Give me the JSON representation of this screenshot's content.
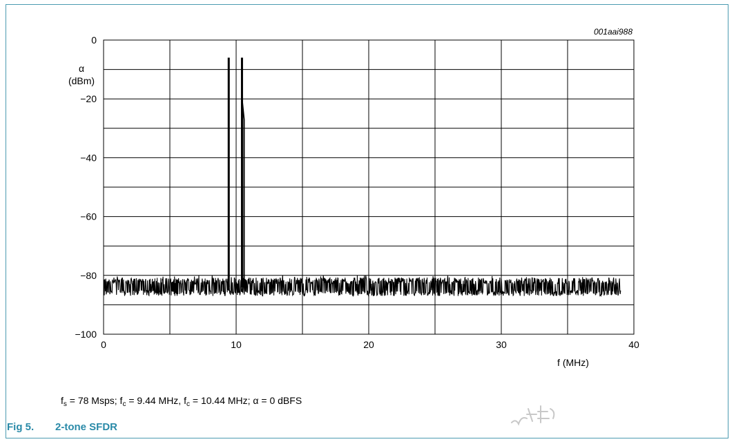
{
  "figure_id": "001aai988",
  "caption": {
    "number": "Fig 5.",
    "title": "2-tone SFDR"
  },
  "conditions": {
    "fs_sym": "f",
    "fs_sub": "s",
    "fs_text": " = 78 Msps; ",
    "fc1_sym": "f",
    "fc1_sub": "c",
    "fc1_text": " = 9.44 MHz, ",
    "fc2_sym": "f",
    "fc2_sub": "c",
    "fc2_text": " = 10.44 MHz; α = 0 dBFS"
  },
  "colors": {
    "frame": "#4a9ab0",
    "caption": "#2a8aa8",
    "trace": "#000000"
  },
  "chart_data": {
    "type": "line",
    "title": "",
    "xlabel": "f (MHz)",
    "ylabel_symbol": "α",
    "ylabel_unit": "(dBm)",
    "xlim": [
      0,
      40
    ],
    "ylim": [
      -100,
      0
    ],
    "x_ticks": [
      0,
      10,
      20,
      30,
      40
    ],
    "x_tick_labels": [
      "0",
      "10",
      "20",
      "30",
      "40"
    ],
    "y_ticks": [
      0,
      -20,
      -40,
      -60,
      -80,
      -100
    ],
    "y_tick_labels": [
      "0",
      "−20",
      "−40",
      "−60",
      "−80",
      "−100"
    ],
    "x_grid_step": 5,
    "y_grid_step": 10,
    "grid": true,
    "legend": "none",
    "series": [
      {
        "noise_floor_dbm": -84,
        "noise_range_dbm": [
          -87,
          -80
        ],
        "freq_range_mhz": [
          0,
          39
        ],
        "tones": [
          {
            "freq_mhz": 9.44,
            "level_dbm": -6
          },
          {
            "freq_mhz": 10.44,
            "level_dbm": -6
          }
        ]
      }
    ]
  }
}
